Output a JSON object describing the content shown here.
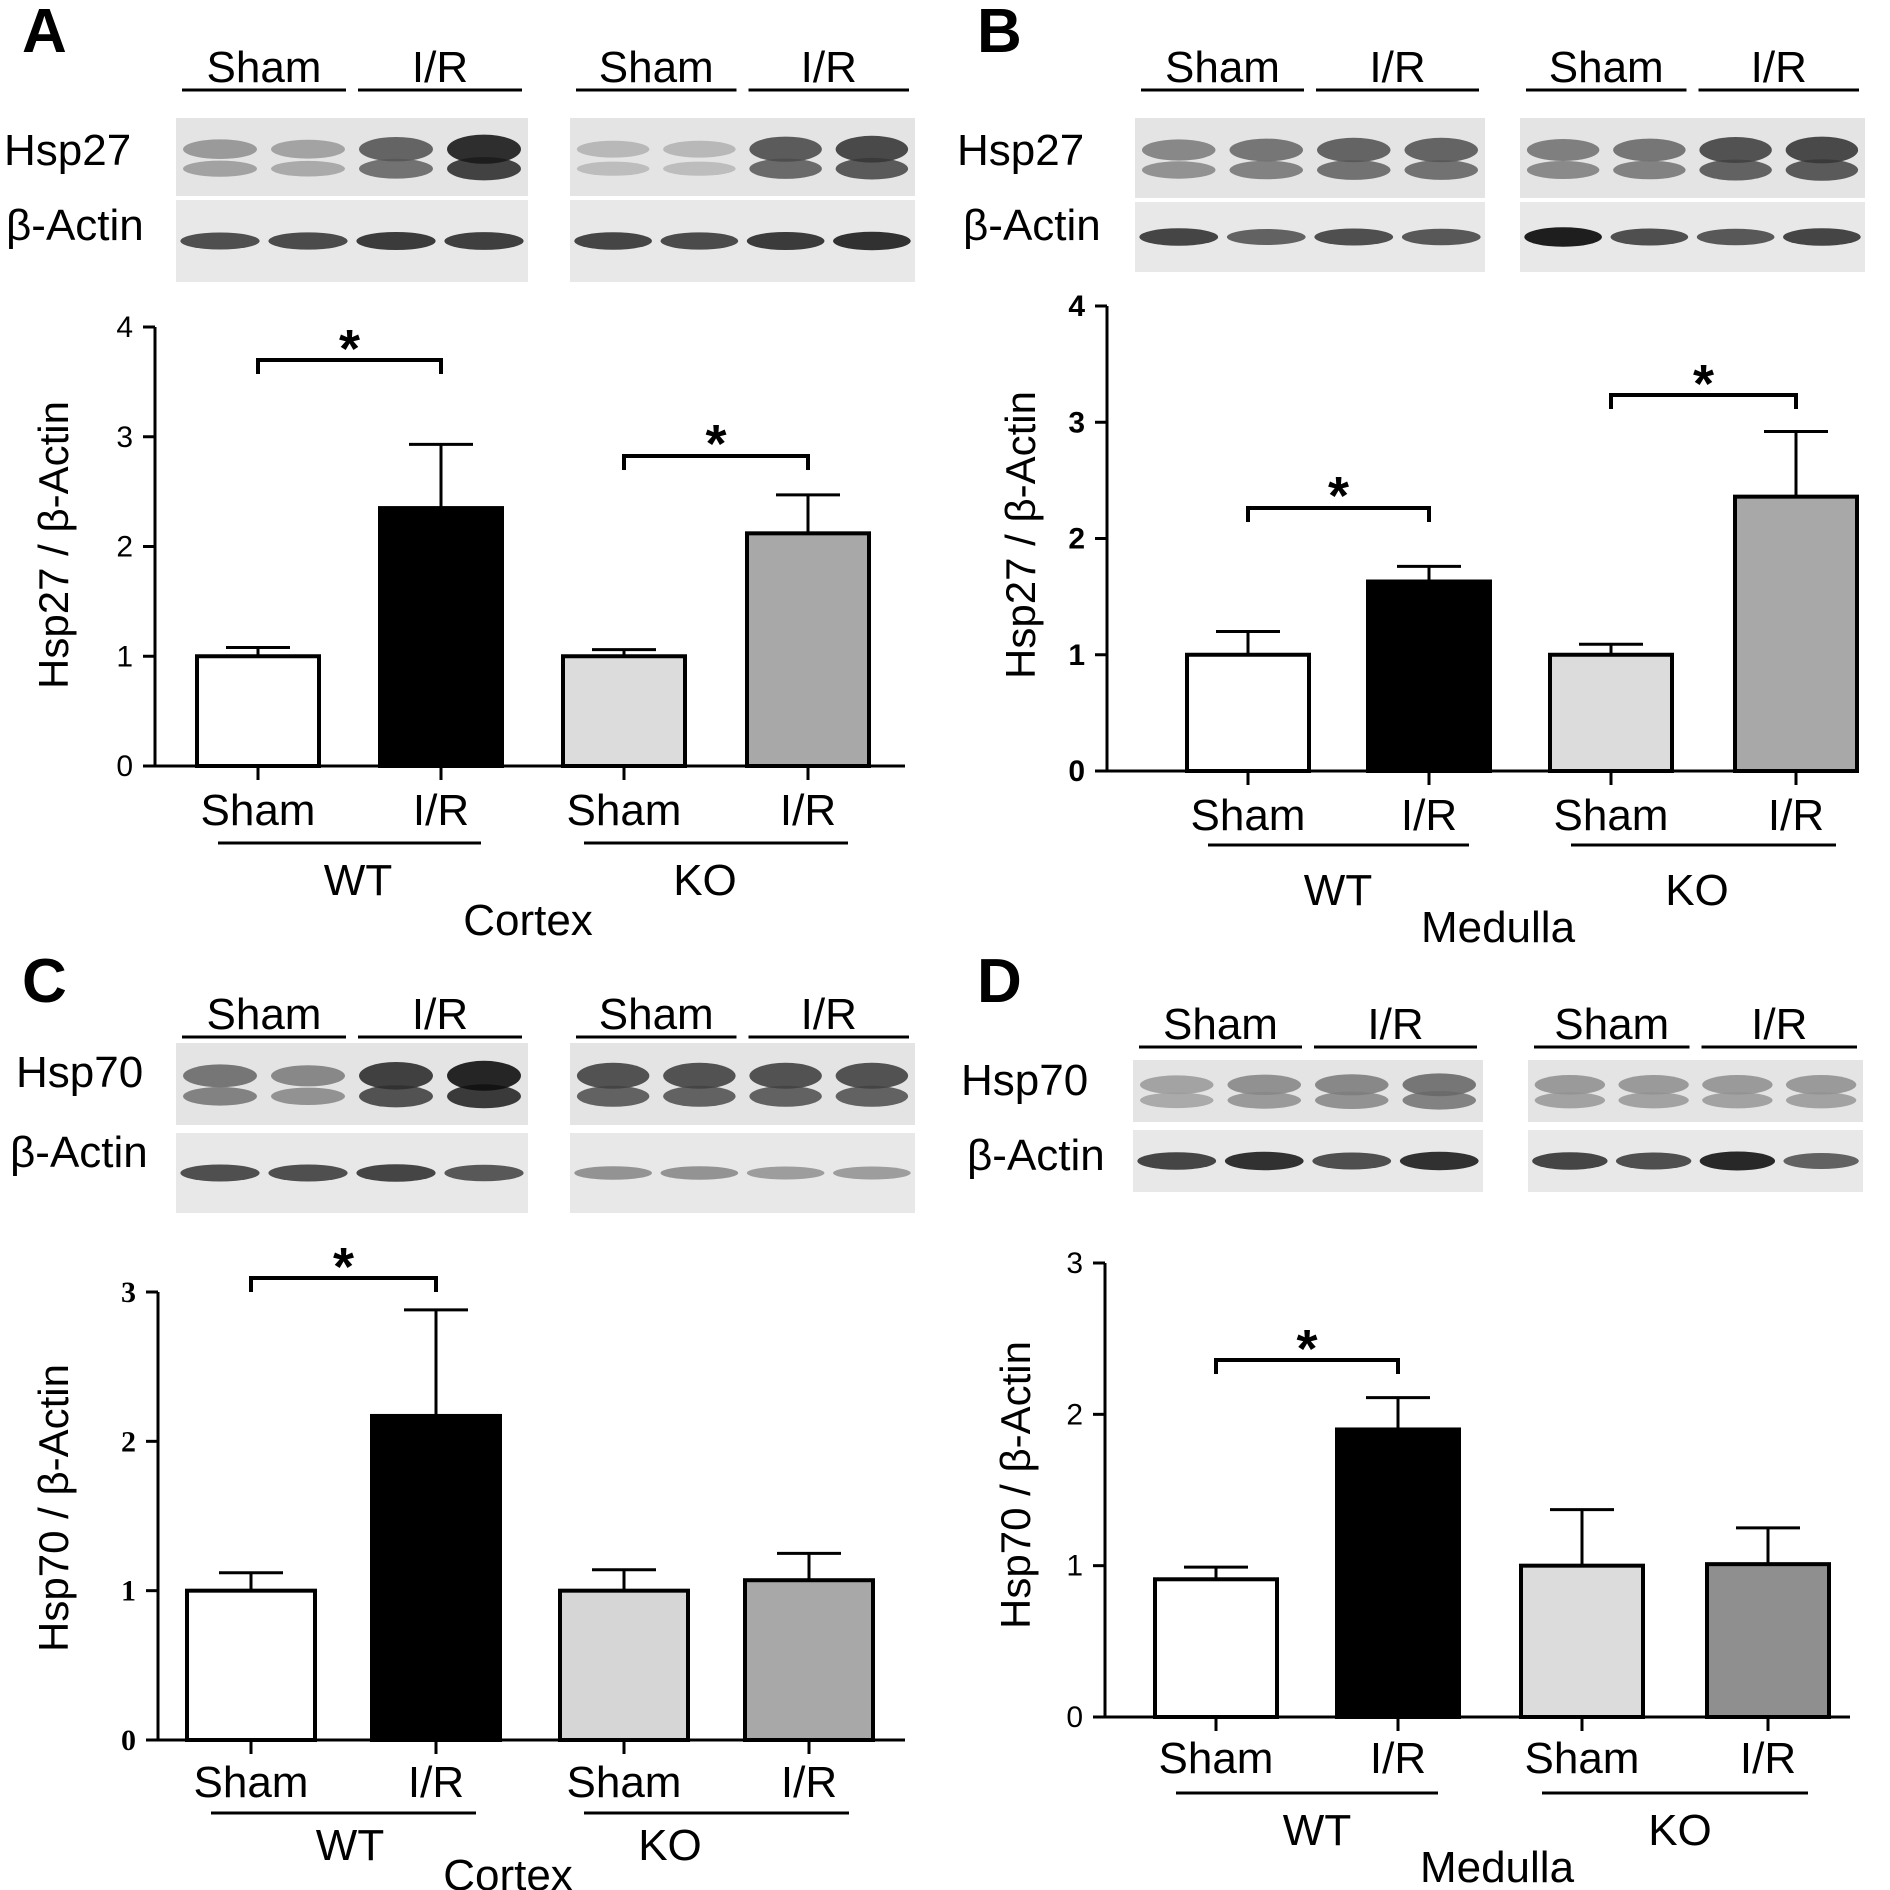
{
  "panels": [
    {
      "letter": "A",
      "blot": {
        "groups": [
          {
            "name": "WT",
            "lanes": [
              "Sham",
              "I/R"
            ],
            "bands": {
              "target": [
                0.35,
                0.3,
                0.65,
                0.95
              ],
              "actin": [
                0.7,
                0.72,
                0.8,
                0.78
              ]
            }
          },
          {
            "name": "KO",
            "lanes": [
              "Sham",
              "I/R"
            ],
            "bands": {
              "target": [
                0.18,
                0.18,
                0.7,
                0.8
              ],
              "actin": [
                0.75,
                0.72,
                0.8,
                0.85
              ]
            }
          }
        ],
        "target_label": "Hsp27",
        "actin_label": "β-Actin"
      },
      "significance": [
        "*",
        "*"
      ],
      "chart_data": {
        "type": "bar",
        "ylabel": "Hsp27 / β-Actin",
        "ylim": [
          0,
          4
        ],
        "yticks": [
          "0",
          "1",
          "2",
          "3",
          "4"
        ],
        "categories": [
          "Sham",
          "I/R",
          "Sham",
          "I/R"
        ],
        "groups": [
          "WT",
          "KO"
        ],
        "region": "Cortex",
        "values": [
          1.0,
          2.35,
          1.0,
          2.12
        ],
        "errors": [
          0.08,
          0.58,
          0.06,
          0.35
        ],
        "colors": [
          "#ffffff",
          "#000000",
          "#dcdcdc",
          "#a8a8a8"
        ],
        "significant_pairs": [
          [
            0,
            1
          ],
          [
            2,
            3
          ]
        ]
      }
    },
    {
      "letter": "B",
      "blot": {
        "groups": [
          {
            "name": "WT",
            "lanes": [
              "Sham",
              "I/R"
            ],
            "bands": {
              "target": [
                0.45,
                0.55,
                0.65,
                0.65
              ],
              "actin": [
                0.75,
                0.6,
                0.7,
                0.65
              ]
            }
          },
          {
            "name": "KO",
            "lanes": [
              "Sham",
              "I/R"
            ],
            "bands": {
              "target": [
                0.5,
                0.55,
                0.75,
                0.8
              ],
              "actin": [
                0.95,
                0.7,
                0.65,
                0.75
              ]
            }
          }
        ],
        "target_label": "Hsp27",
        "actin_label": "β-Actin"
      },
      "significance": [
        "*",
        "*"
      ],
      "chart_data": {
        "type": "bar",
        "ylabel": "Hsp27 / β-Actin",
        "ylim": [
          0,
          4
        ],
        "yticks": [
          "0",
          "1",
          "2",
          "3",
          "4"
        ],
        "categories": [
          "Sham",
          "I/R",
          "Sham",
          "I/R"
        ],
        "groups": [
          "WT",
          "KO"
        ],
        "region": "Medulla",
        "values": [
          1.0,
          1.63,
          1.0,
          2.36
        ],
        "errors": [
          0.2,
          0.13,
          0.09,
          0.56
        ],
        "colors": [
          "#ffffff",
          "#000000",
          "#dcdcdc",
          "#a8a8a8"
        ],
        "significant_pairs": [
          [
            0,
            1
          ],
          [
            2,
            3
          ]
        ]
      }
    },
    {
      "letter": "C",
      "blot": {
        "groups": [
          {
            "name": "WT",
            "lanes": [
              "Sham",
              "I/R"
            ],
            "bands": {
              "target": [
                0.55,
                0.45,
                0.85,
                1.0
              ],
              "actin": [
                0.7,
                0.7,
                0.75,
                0.65
              ]
            }
          },
          {
            "name": "KO",
            "lanes": [
              "Sham",
              "I/R"
            ],
            "bands": {
              "target": [
                0.75,
                0.75,
                0.75,
                0.75
              ],
              "actin": [
                0.35,
                0.35,
                0.3,
                0.3
              ]
            }
          }
        ],
        "target_label": "Hsp70",
        "actin_label": "β-Actin"
      },
      "significance": [
        "*"
      ],
      "chart_data": {
        "type": "bar",
        "ylabel": "Hsp70 / β-Actin",
        "ylim": [
          0,
          3
        ],
        "yticks": [
          "0",
          "1",
          "2",
          "3"
        ],
        "categories": [
          "Sham",
          "I/R",
          "Sham",
          "I/R"
        ],
        "groups": [
          "WT",
          "KO"
        ],
        "region": "Cortex",
        "values": [
          1.0,
          2.17,
          1.0,
          1.07
        ],
        "errors": [
          0.12,
          0.71,
          0.14,
          0.18
        ],
        "colors": [
          "#ffffff",
          "#000000",
          "#d6d6d6",
          "#a8a8a8"
        ],
        "significant_pairs": [
          [
            0,
            1
          ]
        ]
      }
    },
    {
      "letter": "D",
      "blot": {
        "groups": [
          {
            "name": "WT",
            "lanes": [
              "Sham",
              "I/R"
            ],
            "bands": {
              "target": [
                0.3,
                0.4,
                0.45,
                0.55
              ],
              "actin": [
                0.75,
                0.85,
                0.7,
                0.85
              ]
            }
          },
          {
            "name": "KO",
            "lanes": [
              "Sham",
              "I/R"
            ],
            "bands": {
              "target": [
                0.35,
                0.35,
                0.35,
                0.35
              ],
              "actin": [
                0.75,
                0.7,
                0.9,
                0.6
              ]
            }
          }
        ],
        "target_label": "Hsp70",
        "actin_label": "β-Actin"
      },
      "significance": [
        "*"
      ],
      "chart_data": {
        "type": "bar",
        "ylabel": "Hsp70 / β-Actin",
        "ylim": [
          0,
          3
        ],
        "yticks": [
          "0",
          "1",
          "2",
          "3"
        ],
        "categories": [
          "Sham",
          "I/R",
          "Sham",
          "I/R"
        ],
        "groups": [
          "WT",
          "KO"
        ],
        "region": "Medulla",
        "values": [
          0.91,
          1.9,
          1.0,
          1.01
        ],
        "errors": [
          0.08,
          0.21,
          0.37,
          0.24
        ],
        "colors": [
          "#ffffff",
          "#000000",
          "#dcdcdc",
          "#8f8f8f"
        ],
        "significant_pairs": [
          [
            0,
            1
          ]
        ]
      }
    }
  ]
}
